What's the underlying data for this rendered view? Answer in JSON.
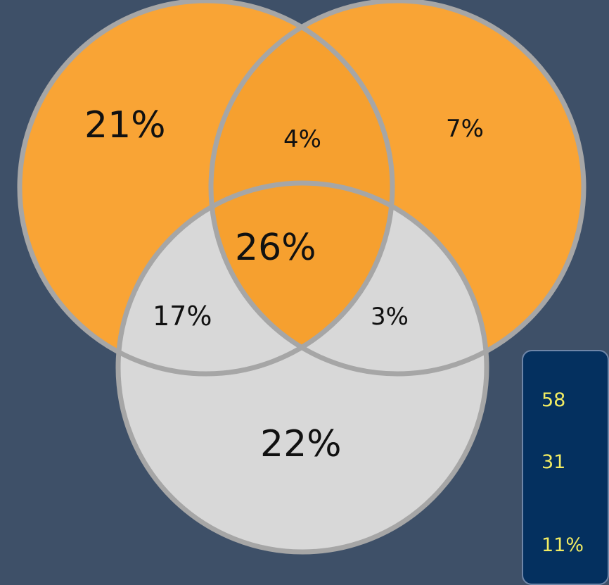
{
  "venn": {
    "regions": {
      "a_only": "21%",
      "ab": "4%",
      "b_only": "7%",
      "abc": "26%",
      "ac": "17%",
      "bc": "3%",
      "c_only": "22%"
    },
    "legend": {
      "items": [
        "58",
        "31",
        "11%"
      ]
    }
  },
  "colors": {
    "background": "#3e5068",
    "orange_circle": "#f9a435",
    "gray_circle": "#d8d8d8",
    "circle_stroke": "#a6a6a6",
    "text": "#111111",
    "legend_bg": "#04305f",
    "legend_text": "#f2ec62"
  }
}
